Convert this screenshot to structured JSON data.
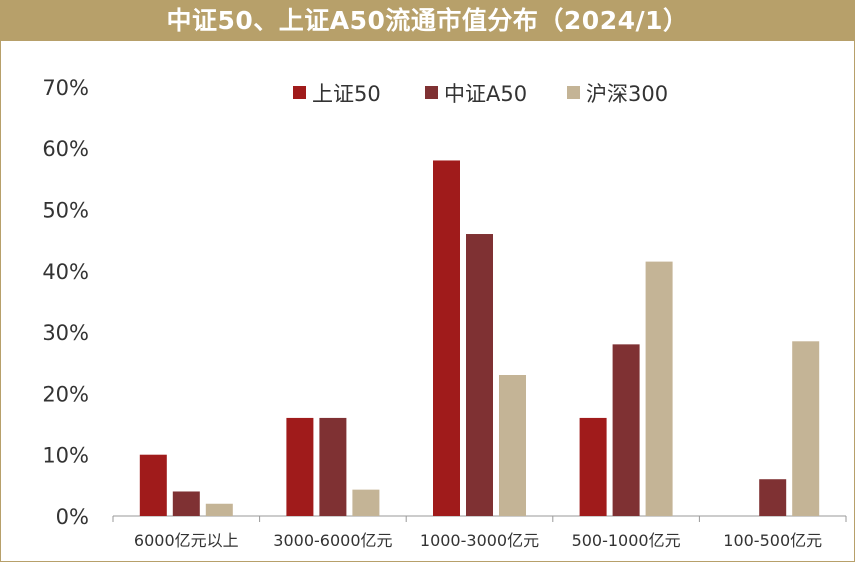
{
  "chart_data": {
    "type": "bar",
    "title": "中证50、上证A50流通市值分布（2024/1）",
    "xlabel": "",
    "ylabel": "",
    "categories": [
      "6000亿元以上",
      "3000-6000亿元",
      "1000-3000亿元",
      "500-1000亿元",
      "100-500亿元"
    ],
    "series": [
      {
        "name": "上证50",
        "color": "#a01b1b",
        "values": [
          10,
          16,
          58,
          16,
          0
        ]
      },
      {
        "name": "中证A50",
        "color": "#7f3133",
        "values": [
          4,
          16,
          46,
          28,
          6
        ]
      },
      {
        "name": "沪深300",
        "color": "#c4b496",
        "values": [
          2,
          4.3,
          23,
          41.5,
          28.5
        ]
      }
    ],
    "ylim": [
      0,
      70
    ],
    "yticks": [
      "0%",
      "10%",
      "20%",
      "30%",
      "40%",
      "50%",
      "60%",
      "70%"
    ],
    "grid": false,
    "legend_position": "top"
  }
}
